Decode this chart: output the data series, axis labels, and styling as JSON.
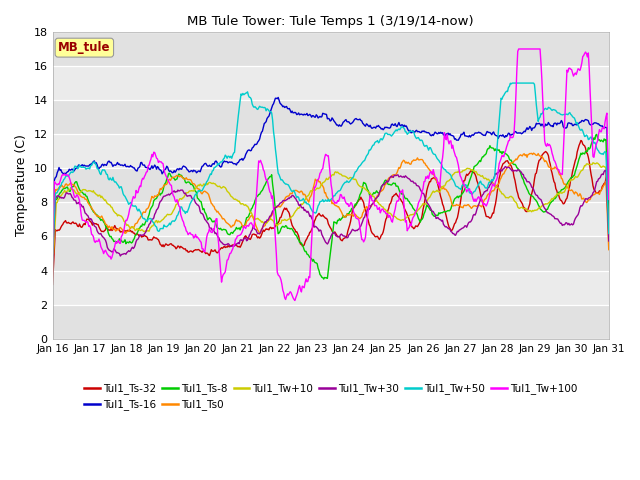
{
  "title": "MB Tule Tower: Tule Temps 1 (3/19/14-now)",
  "ylabel": "Temperature (C)",
  "xlim": [
    0,
    15
  ],
  "ylim": [
    0,
    18
  ],
  "yticks": [
    0,
    2,
    4,
    6,
    8,
    10,
    12,
    14,
    16,
    18
  ],
  "xtick_labels": [
    "Jan 16",
    "Jan 17",
    "Jan 18",
    "Jan 19",
    "Jan 20",
    "Jan 21",
    "Jan 22",
    "Jan 23",
    "Jan 24",
    "Jan 25",
    "Jan 26",
    "Jan 27",
    "Jan 28",
    "Jan 29",
    "Jan 30",
    "Jan 31"
  ],
  "annotation_box": "MB_tule",
  "annotation_box_color": "#FFFF99",
  "annotation_text_color": "#990000",
  "plot_bg_color": "#EBEBEB",
  "fig_bg_color": "#FFFFFF",
  "grid_color": "#FFFFFF",
  "series": [
    {
      "label": "Tul1_Ts-32",
      "color": "#CC0000"
    },
    {
      "label": "Tul1_Ts-16",
      "color": "#0000CC"
    },
    {
      "label": "Tul1_Ts-8",
      "color": "#00CC00"
    },
    {
      "label": "Tul1_Ts0",
      "color": "#FF8800"
    },
    {
      "label": "Tul1_Tw+10",
      "color": "#CCCC00"
    },
    {
      "label": "Tul1_Tw+30",
      "color": "#990099"
    },
    {
      "label": "Tul1_Tw+50",
      "color": "#00CCCC"
    },
    {
      "label": "Tul1_Tw+100",
      "color": "#FF00FF"
    }
  ]
}
